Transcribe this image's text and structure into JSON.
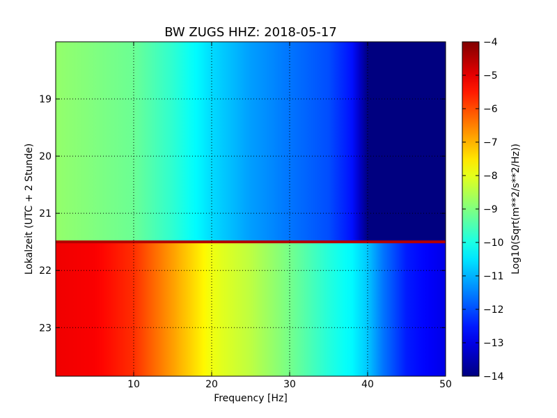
{
  "chart_data": {
    "type": "heatmap",
    "title": "BW ZUGS HHZ: 2018-05-17",
    "xlabel": "Frequency [Hz]",
    "ylabel": "Lokalzeit (UTC + 2 Stunde)",
    "colorbar_label": "Log10(Sqrt(m**2/s**2/Hz))",
    "xlim": [
      0,
      50
    ],
    "ylim": [
      18.0,
      23.85
    ],
    "y_inverted": true,
    "x_ticks": [
      10,
      20,
      30,
      40,
      50
    ],
    "x_tick_labels": [
      "10",
      "20",
      "30",
      "40",
      "50"
    ],
    "y_ticks": [
      19,
      20,
      21,
      22,
      23
    ],
    "y_tick_labels": [
      "19",
      "20",
      "21",
      "22",
      "23"
    ],
    "color_range": [
      -14,
      -4
    ],
    "colorbar_ticks": [
      -4,
      -5,
      -6,
      -7,
      -8,
      -9,
      -10,
      -11,
      -12,
      -13,
      -14
    ],
    "colorbar_tick_labels": [
      "−4",
      "−5",
      "−6",
      "−7",
      "−8",
      "−9",
      "−10",
      "−11",
      "−12",
      "−13",
      "−14"
    ],
    "colormap": "jet",
    "grid": true,
    "frequency_bins": [
      0,
      5,
      10,
      15,
      20,
      25,
      30,
      35,
      38,
      40,
      42,
      45,
      50
    ],
    "segments": [
      {
        "time_range": [
          18.0,
          21.5
        ],
        "values": [
          -8.8,
          -9.0,
          -9.2,
          -9.8,
          -10.6,
          -11.2,
          -11.6,
          -12.0,
          -12.6,
          -14.0,
          -14.0,
          -14.0,
          -14.0
        ]
      },
      {
        "time_range": [
          21.5,
          23.85
        ],
        "values": [
          -5.1,
          -5.2,
          -5.7,
          -6.8,
          -7.9,
          -8.4,
          -9.1,
          -9.9,
          -10.3,
          -10.8,
          -11.6,
          -12.5,
          -13.0
        ]
      }
    ],
    "band_at_time": 21.5,
    "band_value": -4.5
  }
}
